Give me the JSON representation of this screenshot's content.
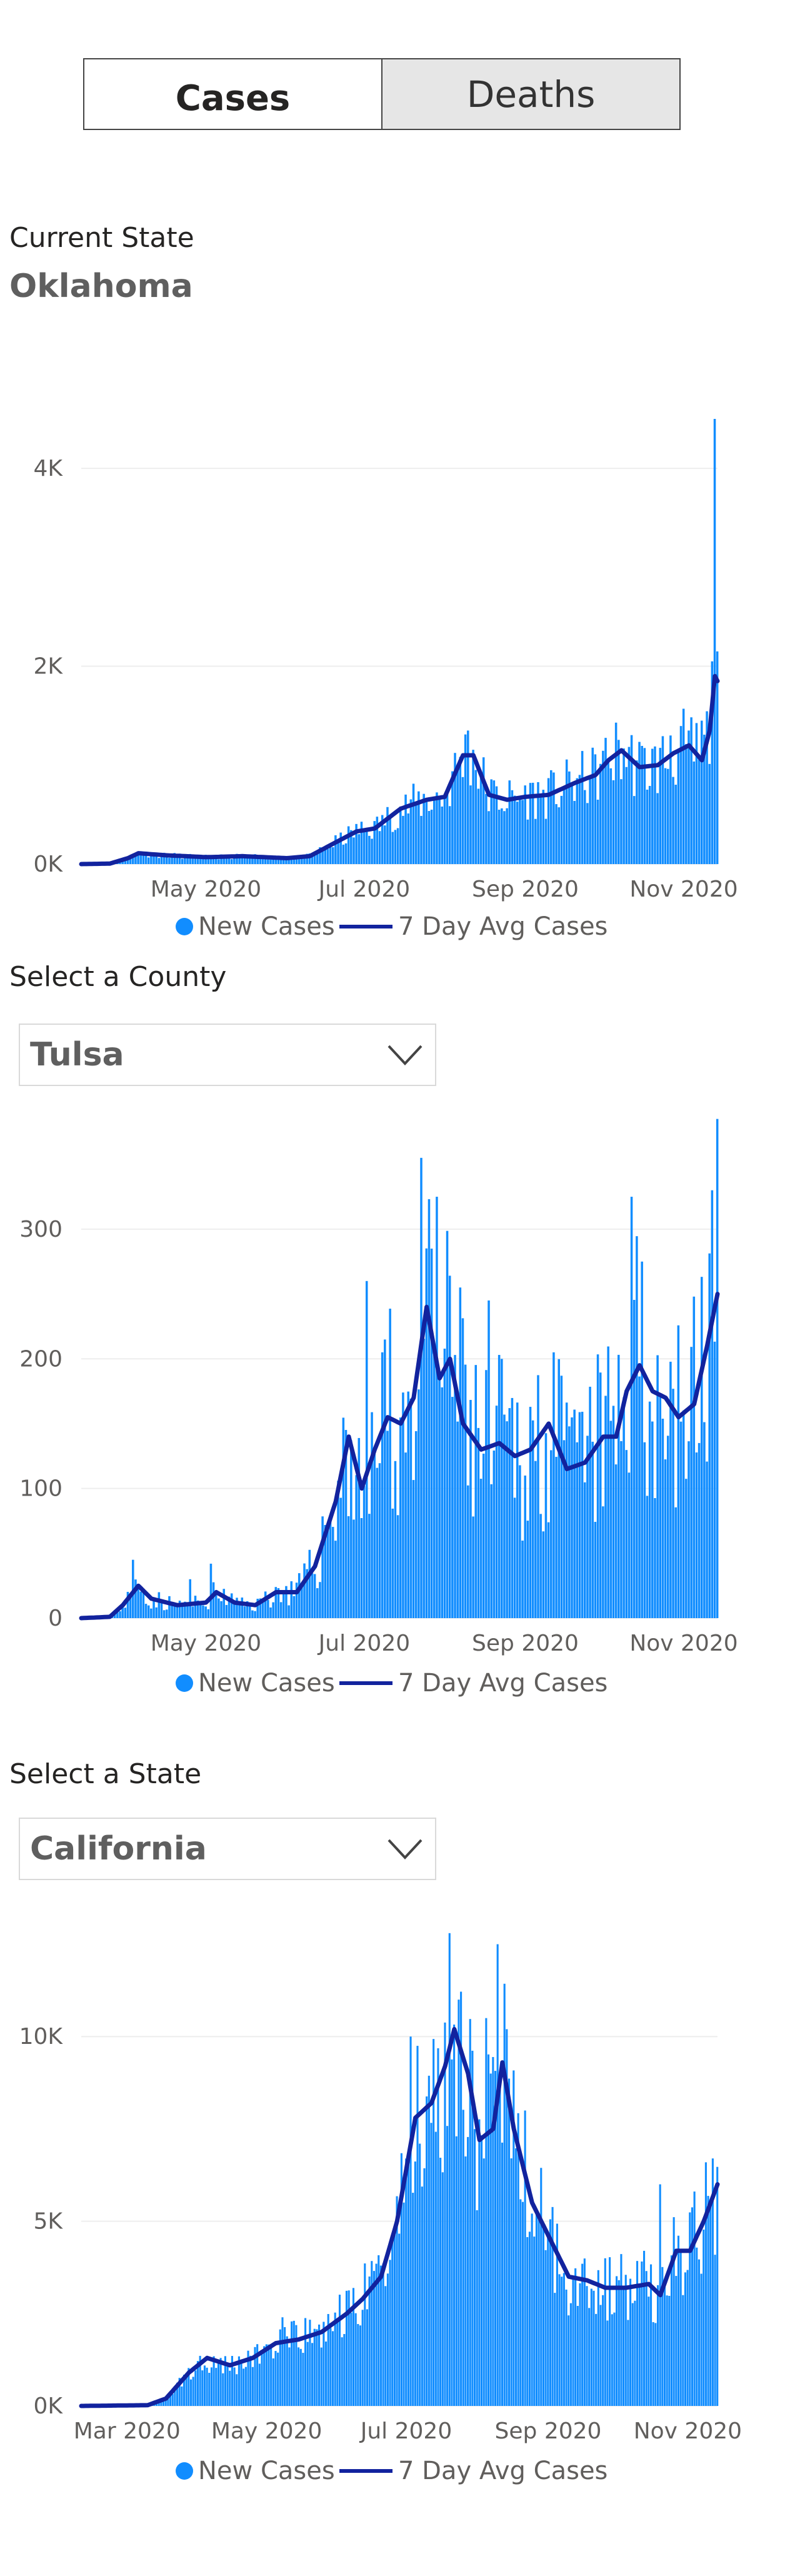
{
  "tabs": {
    "cases": "Cases",
    "deaths": "Deaths"
  },
  "current_state": {
    "label": "Current State",
    "value": "Oklahoma"
  },
  "county_select": {
    "label": "Select a County",
    "value": "Tulsa"
  },
  "state_select": {
    "label": "Select a State",
    "value": "California"
  },
  "colors": {
    "bar": "#118DFF",
    "line": "#12239E"
  },
  "legend": {
    "bars": "New Cases",
    "line": "7 Day Avg Cases"
  },
  "chart_data": [
    {
      "type": "bar",
      "name": "oklahoma",
      "x_range": [
        "2020-03-14",
        "2020-11-14"
      ],
      "x_ticks": [
        {
          "date": "2020-05-01",
          "label": "May 2020"
        },
        {
          "date": "2020-07-01",
          "label": "Jul 2020"
        },
        {
          "date": "2020-09-01",
          "label": "Sep 2020"
        },
        {
          "date": "2020-11-01",
          "label": "Nov 2020"
        }
      ],
      "ylim": [
        0,
        4500
      ],
      "y_ticks": [
        {
          "value": 0,
          "label": "0K"
        },
        {
          "value": 2000,
          "label": "2K"
        },
        {
          "value": 4000,
          "label": "4K"
        }
      ],
      "legend": [
        "New Cases",
        "7 Day Avg Cases"
      ],
      "avg_keypoints": [
        [
          "2020-03-14",
          0
        ],
        [
          "2020-03-25",
          5
        ],
        [
          "2020-04-01",
          60
        ],
        [
          "2020-04-05",
          110
        ],
        [
          "2020-04-15",
          90
        ],
        [
          "2020-05-01",
          70
        ],
        [
          "2020-05-15",
          80
        ],
        [
          "2020-06-01",
          60
        ],
        [
          "2020-06-10",
          80
        ],
        [
          "2020-06-20",
          220
        ],
        [
          "2020-06-28",
          330
        ],
        [
          "2020-07-05",
          360
        ],
        [
          "2020-07-15",
          560
        ],
        [
          "2020-07-25",
          650
        ],
        [
          "2020-08-01",
          680
        ],
        [
          "2020-08-08",
          1100
        ],
        [
          "2020-08-12",
          1100
        ],
        [
          "2020-08-18",
          700
        ],
        [
          "2020-08-25",
          650
        ],
        [
          "2020-09-01",
          680
        ],
        [
          "2020-09-10",
          700
        ],
        [
          "2020-09-20",
          820
        ],
        [
          "2020-09-28",
          900
        ],
        [
          "2020-10-03",
          1050
        ],
        [
          "2020-10-08",
          1150
        ],
        [
          "2020-10-15",
          980
        ],
        [
          "2020-10-22",
          1000
        ],
        [
          "2020-10-28",
          1120
        ],
        [
          "2020-11-03",
          1200
        ],
        [
          "2020-11-08",
          1050
        ],
        [
          "2020-11-11",
          1350
        ],
        [
          "2020-11-13",
          1900
        ],
        [
          "2020-11-14",
          1850
        ]
      ],
      "spikes": [
        [
          "2020-08-10",
          1350
        ],
        [
          "2020-10-27",
          1300
        ],
        [
          "2020-11-03",
          1350
        ],
        [
          "2020-11-08",
          1450
        ],
        [
          "2020-11-13",
          4500
        ],
        [
          "2020-11-14",
          2150
        ]
      ]
    },
    {
      "type": "bar",
      "name": "tulsa",
      "x_range": [
        "2020-03-14",
        "2020-11-14"
      ],
      "x_ticks": [
        {
          "date": "2020-05-01",
          "label": "May 2020"
        },
        {
          "date": "2020-07-01",
          "label": "Jul 2020"
        },
        {
          "date": "2020-09-01",
          "label": "Sep 2020"
        },
        {
          "date": "2020-11-01",
          "label": "Nov 2020"
        }
      ],
      "ylim": [
        0,
        380
      ],
      "y_ticks": [
        {
          "value": 0,
          "label": "0"
        },
        {
          "value": 100,
          "label": "100"
        },
        {
          "value": 200,
          "label": "200"
        },
        {
          "value": 300,
          "label": "300"
        }
      ],
      "legend": [
        "New Cases",
        "7 Day Avg Cases"
      ],
      "avg_keypoints": [
        [
          "2020-03-14",
          0
        ],
        [
          "2020-03-25",
          1
        ],
        [
          "2020-03-30",
          10
        ],
        [
          "2020-04-05",
          25
        ],
        [
          "2020-04-10",
          15
        ],
        [
          "2020-04-20",
          10
        ],
        [
          "2020-05-01",
          12
        ],
        [
          "2020-05-05",
          20
        ],
        [
          "2020-05-12",
          12
        ],
        [
          "2020-05-20",
          10
        ],
        [
          "2020-05-28",
          20
        ],
        [
          "2020-06-05",
          20
        ],
        [
          "2020-06-12",
          40
        ],
        [
          "2020-06-20",
          90
        ],
        [
          "2020-06-25",
          140
        ],
        [
          "2020-06-30",
          100
        ],
        [
          "2020-07-05",
          130
        ],
        [
          "2020-07-10",
          155
        ],
        [
          "2020-07-15",
          150
        ],
        [
          "2020-07-20",
          170
        ],
        [
          "2020-07-25",
          240
        ],
        [
          "2020-07-30",
          185
        ],
        [
          "2020-08-03",
          200
        ],
        [
          "2020-08-08",
          150
        ],
        [
          "2020-08-15",
          130
        ],
        [
          "2020-08-22",
          135
        ],
        [
          "2020-08-28",
          125
        ],
        [
          "2020-09-03",
          130
        ],
        [
          "2020-09-10",
          150
        ],
        [
          "2020-09-17",
          115
        ],
        [
          "2020-09-24",
          120
        ],
        [
          "2020-10-01",
          140
        ],
        [
          "2020-10-06",
          140
        ],
        [
          "2020-10-10",
          175
        ],
        [
          "2020-10-15",
          195
        ],
        [
          "2020-10-20",
          175
        ],
        [
          "2020-10-25",
          170
        ],
        [
          "2020-10-30",
          155
        ],
        [
          "2020-11-05",
          165
        ],
        [
          "2020-11-10",
          210
        ],
        [
          "2020-11-14",
          250
        ]
      ],
      "spikes": [
        [
          "2020-04-03",
          45
        ],
        [
          "2020-04-25",
          30
        ],
        [
          "2020-05-03",
          42
        ],
        [
          "2020-07-02",
          260
        ],
        [
          "2020-07-08",
          205
        ],
        [
          "2020-07-23",
          355
        ],
        [
          "2020-07-27",
          285
        ],
        [
          "2020-07-29",
          325
        ],
        [
          "2020-08-07",
          255
        ],
        [
          "2020-08-18",
          245
        ],
        [
          "2020-09-12",
          205
        ],
        [
          "2020-10-12",
          325
        ],
        [
          "2020-10-16",
          275
        ],
        [
          "2020-11-12",
          330
        ],
        [
          "2020-11-14",
          385
        ]
      ]
    },
    {
      "type": "bar",
      "name": "california",
      "x_range": [
        "2020-02-10",
        "2020-11-14"
      ],
      "x_ticks": [
        {
          "date": "2020-03-01",
          "label": "Mar 2020"
        },
        {
          "date": "2020-05-01",
          "label": "May 2020"
        },
        {
          "date": "2020-07-01",
          "label": "Jul 2020"
        },
        {
          "date": "2020-09-01",
          "label": "Sep 2020"
        },
        {
          "date": "2020-11-01",
          "label": "Nov 2020"
        }
      ],
      "ylim": [
        0,
        13000
      ],
      "y_ticks": [
        {
          "value": 0,
          "label": "0K"
        },
        {
          "value": 5000,
          "label": "5K"
        },
        {
          "value": 10000,
          "label": "10K"
        }
      ],
      "legend": [
        "New Cases",
        "7 Day Avg Cases"
      ],
      "avg_keypoints": [
        [
          "2020-02-10",
          0
        ],
        [
          "2020-03-10",
          20
        ],
        [
          "2020-03-18",
          200
        ],
        [
          "2020-03-28",
          900
        ],
        [
          "2020-04-05",
          1300
        ],
        [
          "2020-04-15",
          1100
        ],
        [
          "2020-04-25",
          1300
        ],
        [
          "2020-05-05",
          1700
        ],
        [
          "2020-05-15",
          1800
        ],
        [
          "2020-05-25",
          2000
        ],
        [
          "2020-06-05",
          2500
        ],
        [
          "2020-06-12",
          2900
        ],
        [
          "2020-06-20",
          3500
        ],
        [
          "2020-06-27",
          5000
        ],
        [
          "2020-07-05",
          7800
        ],
        [
          "2020-07-12",
          8200
        ],
        [
          "2020-07-18",
          9200
        ],
        [
          "2020-07-22",
          10200
        ],
        [
          "2020-07-28",
          9000
        ],
        [
          "2020-08-02",
          7200
        ],
        [
          "2020-08-08",
          7500
        ],
        [
          "2020-08-12",
          9300
        ],
        [
          "2020-08-17",
          7500
        ],
        [
          "2020-08-25",
          5500
        ],
        [
          "2020-09-02",
          4500
        ],
        [
          "2020-09-10",
          3500
        ],
        [
          "2020-09-18",
          3400
        ],
        [
          "2020-09-26",
          3200
        ],
        [
          "2020-10-05",
          3200
        ],
        [
          "2020-10-15",
          3300
        ],
        [
          "2020-10-20",
          3000
        ],
        [
          "2020-10-27",
          4200
        ],
        [
          "2020-11-02",
          4200
        ],
        [
          "2020-11-08",
          5000
        ],
        [
          "2020-11-14",
          6000
        ]
      ],
      "spikes": [
        [
          "2020-05-08",
          2400
        ],
        [
          "2020-06-20",
          3800
        ],
        [
          "2020-07-03",
          10000
        ],
        [
          "2020-07-20",
          12800
        ],
        [
          "2020-07-24",
          11000
        ],
        [
          "2020-08-05",
          10500
        ],
        [
          "2020-08-10",
          12500
        ],
        [
          "2020-08-14",
          10200
        ],
        [
          "2020-10-20",
          6000
        ],
        [
          "2020-11-12",
          6700
        ]
      ]
    }
  ]
}
